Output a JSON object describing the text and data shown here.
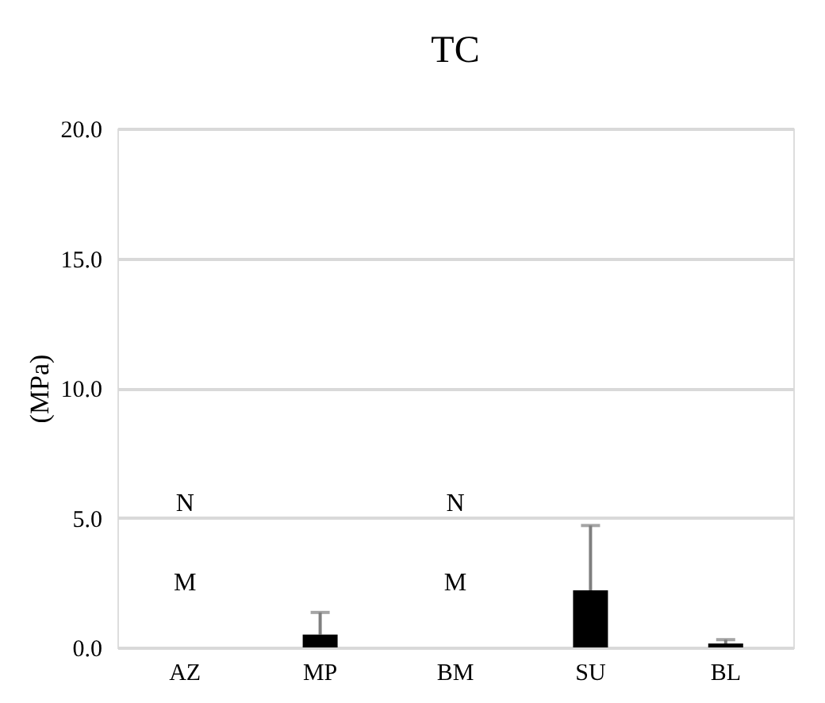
{
  "chart_data": {
    "type": "bar",
    "title": "TC",
    "ylabel": "(MPa)",
    "categories": [
      "AZ",
      "MP",
      "BM",
      "SU",
      "BL"
    ],
    "series": [
      {
        "color": "#000000",
        "values": [
          null,
          0.5,
          null,
          2.2,
          0.15
        ],
        "errors": [
          null,
          [
            0.5,
            1.35
          ],
          null,
          [
            2.2,
            4.7
          ],
          [
            0.15,
            0.3
          ]
        ]
      }
    ],
    "ylim": [
      0,
      20
    ],
    "yticks": [
      {
        "value": 0,
        "label": "0.0"
      },
      {
        "value": 5,
        "label": "5.0"
      },
      {
        "value": 10,
        "label": "10.0"
      },
      {
        "value": 15,
        "label": "15.0"
      },
      {
        "value": 20,
        "label": "20.0"
      }
    ],
    "grid": "y",
    "annotations": [
      "N",
      "M",
      "N",
      "M"
    ]
  }
}
